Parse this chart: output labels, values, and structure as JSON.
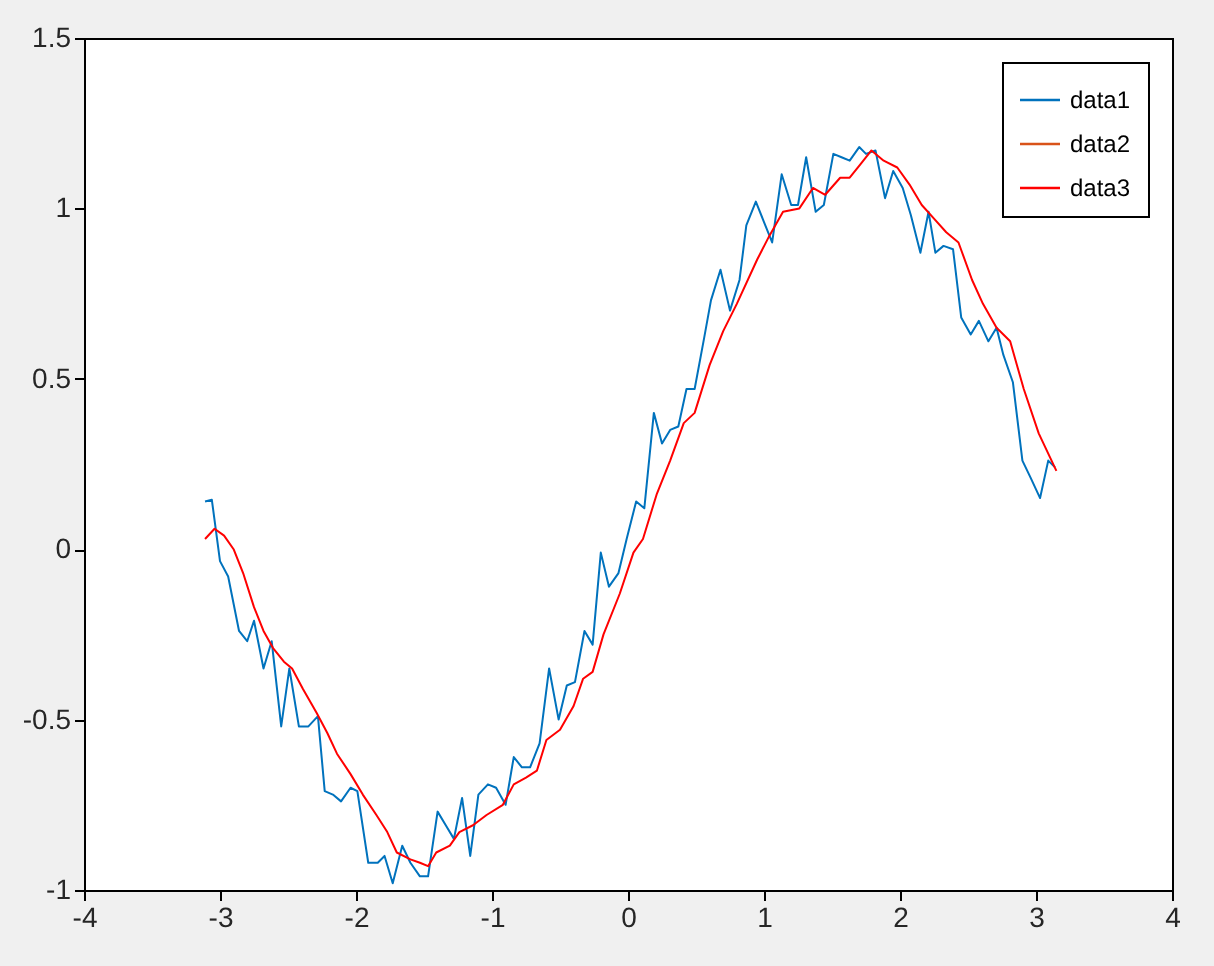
{
  "chart_data": {
    "type": "line",
    "xlim": [
      -4,
      4
    ],
    "xticks": [
      -4,
      -3,
      -2,
      -1,
      0,
      1,
      2,
      3,
      4
    ],
    "ylim": [
      -1,
      1.5
    ],
    "yticks": [
      -1,
      -0.5,
      0,
      0.5,
      1,
      1.5
    ],
    "grid": false,
    "legend": "top right",
    "marker": "none",
    "line_style": "solid",
    "series": [
      {
        "name": "data1",
        "color": "#0072bd",
        "x": [
          -3.11,
          -3.06,
          -3.0,
          -2.94,
          -2.86,
          -2.8,
          -2.75,
          -2.68,
          -2.62,
          -2.55,
          -2.49,
          -2.42,
          -2.35,
          -2.28,
          -2.23,
          -2.17,
          -2.11,
          -2.04,
          -1.99,
          -1.91,
          -1.84,
          -1.79,
          -1.73,
          -1.66,
          -1.6,
          -1.53,
          -1.47,
          -1.4,
          -1.34,
          -1.28,
          -1.22,
          -1.16,
          -1.1,
          -1.03,
          -0.97,
          -0.9,
          -0.84,
          -0.78,
          -0.72,
          -0.65,
          -0.58,
          -0.51,
          -0.45,
          -0.39,
          -0.32,
          -0.26,
          -0.2,
          -0.14,
          -0.07,
          -0.01,
          0.06,
          0.12,
          0.19,
          0.25,
          0.31,
          0.37,
          0.43,
          0.49,
          0.56,
          0.61,
          0.68,
          0.75,
          0.82,
          0.87,
          0.94,
          1.0,
          1.06,
          1.13,
          1.2,
          1.25,
          1.31,
          1.38,
          1.44,
          1.51,
          1.57,
          1.63,
          1.7,
          1.75,
          1.82,
          1.89,
          1.95,
          2.02,
          2.08,
          2.15,
          2.21,
          2.26,
          2.32,
          2.39,
          2.45,
          2.52,
          2.58,
          2.65,
          2.71,
          2.76,
          2.83,
          2.9,
          2.96,
          3.03,
          3.09,
          3.14
        ],
        "values": [
          0.14,
          0.145,
          -0.035,
          -0.08,
          -0.24,
          -0.27,
          -0.21,
          -0.35,
          -0.27,
          -0.52,
          -0.35,
          -0.52,
          -0.52,
          -0.49,
          -0.71,
          -0.72,
          -0.74,
          -0.7,
          -0.71,
          -0.92,
          -0.92,
          -0.9,
          -0.98,
          -0.87,
          -0.92,
          -0.96,
          -0.96,
          -0.77,
          -0.81,
          -0.85,
          -0.73,
          -0.9,
          -0.72,
          -0.69,
          -0.7,
          -0.75,
          -0.61,
          -0.64,
          -0.64,
          -0.57,
          -0.35,
          -0.5,
          -0.4,
          -0.39,
          -0.24,
          -0.28,
          -0.01,
          -0.11,
          -0.07,
          0.03,
          0.14,
          0.12,
          0.4,
          0.31,
          0.35,
          0.36,
          0.47,
          0.47,
          0.62,
          0.73,
          0.82,
          0.7,
          0.79,
          0.95,
          1.02,
          0.96,
          0.9,
          1.1,
          1.01,
          1.01,
          1.15,
          0.99,
          1.01,
          1.16,
          1.15,
          1.14,
          1.18,
          1.16,
          1.17,
          1.03,
          1.11,
          1.06,
          0.98,
          0.87,
          0.99,
          0.87,
          0.89,
          0.88,
          0.68,
          0.63,
          0.67,
          0.61,
          0.65,
          0.57,
          0.49,
          0.26,
          0.21,
          0.15,
          0.26,
          0.24
        ]
      },
      {
        "name": "data2",
        "color": "#d95319"
      },
      {
        "name": "data3",
        "color": "#ff0000",
        "x": [
          -3.11,
          -3.04,
          -2.97,
          -2.9,
          -2.83,
          -2.75,
          -2.68,
          -2.61,
          -2.53,
          -2.47,
          -2.39,
          -2.29,
          -2.21,
          -2.14,
          -2.04,
          -1.95,
          -1.85,
          -1.77,
          -1.7,
          -1.6,
          -1.53,
          -1.47,
          -1.41,
          -1.31,
          -1.24,
          -1.14,
          -1.04,
          -0.92,
          -0.84,
          -0.75,
          -0.67,
          -0.6,
          -0.5,
          -0.4,
          -0.33,
          -0.26,
          -0.18,
          -0.06,
          0.04,
          0.11,
          0.21,
          0.31,
          0.41,
          0.49,
          0.6,
          0.7,
          0.8,
          0.95,
          1.04,
          1.14,
          1.26,
          1.36,
          1.45,
          1.56,
          1.63,
          1.71,
          1.79,
          1.88,
          1.98,
          2.07,
          2.16,
          2.25,
          2.34,
          2.43,
          2.53,
          2.61,
          2.71,
          2.81,
          2.91,
          3.02,
          3.15
        ],
        "values": [
          0.03,
          0.06,
          0.04,
          0.0,
          -0.07,
          -0.17,
          -0.24,
          -0.29,
          -0.33,
          -0.35,
          -0.41,
          -0.48,
          -0.54,
          -0.6,
          -0.66,
          -0.72,
          -0.78,
          -0.83,
          -0.89,
          -0.91,
          -0.92,
          -0.93,
          -0.89,
          -0.87,
          -0.83,
          -0.81,
          -0.78,
          -0.75,
          -0.69,
          -0.67,
          -0.65,
          -0.56,
          -0.53,
          -0.46,
          -0.38,
          -0.36,
          -0.25,
          -0.13,
          -0.01,
          0.03,
          0.16,
          0.26,
          0.37,
          0.4,
          0.54,
          0.64,
          0.72,
          0.85,
          0.92,
          0.99,
          1.0,
          1.06,
          1.04,
          1.09,
          1.09,
          1.13,
          1.17,
          1.14,
          1.12,
          1.07,
          1.01,
          0.97,
          0.93,
          0.9,
          0.79,
          0.72,
          0.65,
          0.61,
          0.47,
          0.34,
          0.23
        ]
      }
    ]
  }
}
